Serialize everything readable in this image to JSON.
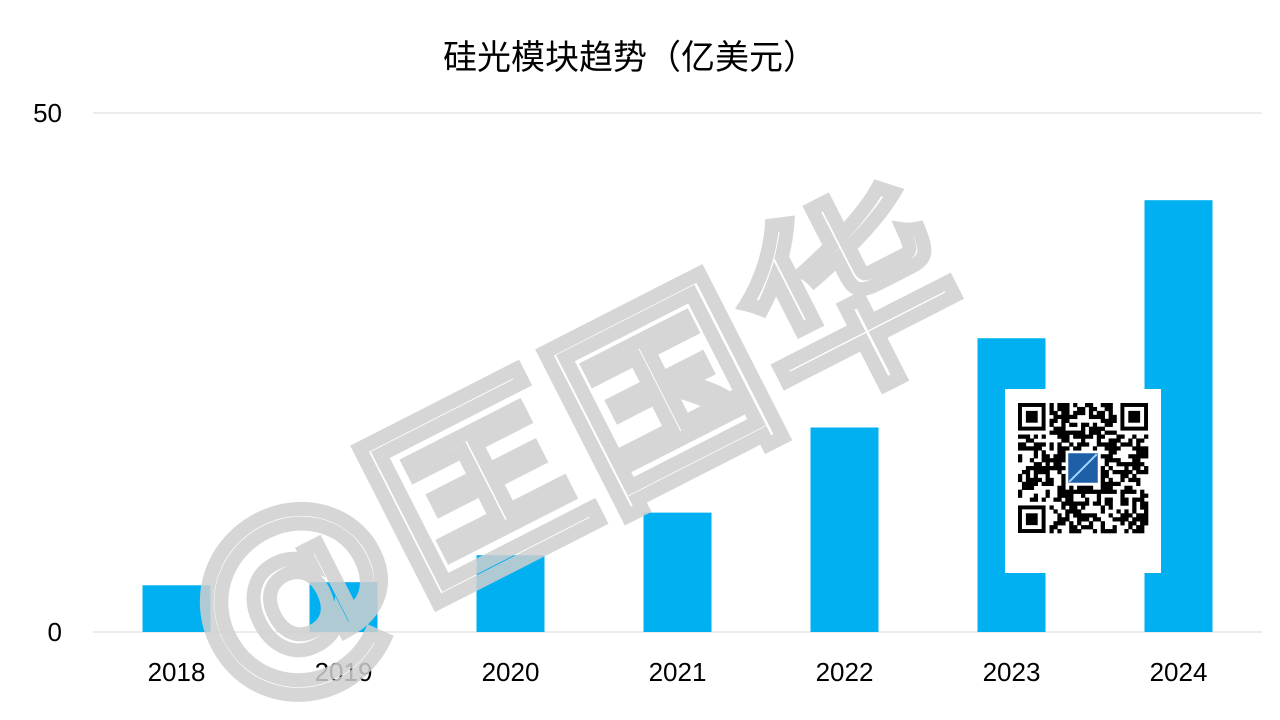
{
  "chart_data": {
    "type": "bar",
    "title": "硅光模块趋势（亿美元）",
    "categories": [
      "2018",
      "2019",
      "2020",
      "2021",
      "2022",
      "2023",
      "2024"
    ],
    "values": [
      4.5,
      4.8,
      7.4,
      11.5,
      19.7,
      28.3,
      41.6
    ],
    "ylim": [
      0,
      50
    ],
    "yticks": [
      "0",
      "50"
    ],
    "grid": true,
    "bar_color": "#00B0F0",
    "gridline_color": "#d9d9d9"
  },
  "watermark": {
    "text": "@匡国华"
  },
  "qr_code": {
    "icon": "qr-code-icon"
  }
}
